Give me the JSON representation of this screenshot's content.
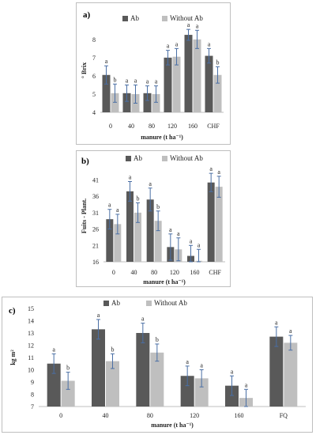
{
  "legend": {
    "ab": "Ab",
    "without_ab": "Without Ab"
  },
  "colors": {
    "ab": "#595959",
    "without_ab": "#bfbfbf",
    "error_bar": "#4a6fa5"
  },
  "chart_data": [
    {
      "panel_label": "a)",
      "type": "bar",
      "categories": [
        "0",
        "40",
        "80",
        "120",
        "160",
        "CHF"
      ],
      "ylabel": "° Brix",
      "xlabel": "manure (t ha⁻¹)",
      "ylim": [
        4,
        8.6
      ],
      "yticks": [
        4,
        5,
        6,
        7,
        8
      ],
      "series": [
        {
          "name": "Ab",
          "values": [
            6.05,
            5.05,
            5.05,
            7.0,
            8.25,
            7.1
          ],
          "errors": [
            0.5,
            0.45,
            0.4,
            0.4,
            0.3,
            0.4
          ],
          "letters": [
            "a",
            "a",
            "a",
            "a",
            "a",
            "a"
          ]
        },
        {
          "name": "Without Ab",
          "values": [
            5.05,
            5.0,
            5.0,
            7.05,
            8.0,
            6.05
          ],
          "errors": [
            0.5,
            0.5,
            0.45,
            0.45,
            0.5,
            0.45
          ],
          "letters": [
            "b",
            "a",
            "a",
            "a",
            "a",
            "b"
          ]
        }
      ]
    },
    {
      "panel_label": "b)",
      "type": "bar",
      "categories": [
        "0",
        "40",
        "80",
        "120",
        "160",
        "CHF"
      ],
      "ylabel": "Fuits - Plant.",
      "xlabel": "manure (t ha⁻¹)",
      "ylim": [
        16,
        44
      ],
      "yticks": [
        16,
        21,
        26,
        31,
        36,
        41
      ],
      "series": [
        {
          "name": "Ab",
          "values": [
            29,
            37.5,
            35,
            20.5,
            17.8,
            40.2
          ],
          "errors": [
            3.0,
            3.0,
            3.5,
            4.0,
            3.2,
            2.8
          ],
          "letters": [
            "a",
            "a",
            "a",
            "a",
            "a",
            "a"
          ]
        },
        {
          "name": "Without Ab",
          "values": [
            27.5,
            31,
            28.5,
            19.8,
            16.3,
            38.9
          ],
          "errors": [
            3.0,
            3.0,
            3.0,
            3.5,
            3.5,
            3.2
          ],
          "letters": [
            "a",
            "b",
            "b",
            "a",
            "a",
            "a"
          ]
        }
      ]
    },
    {
      "panel_label": "c)",
      "type": "bar",
      "categories": [
        "0",
        "40",
        "80",
        "120",
        "160",
        "FQ"
      ],
      "ylabel": "kg m²",
      "xlabel": "manure (t ha⁻¹)",
      "ylim": [
        7,
        15
      ],
      "yticks": [
        7,
        8,
        9,
        10,
        11,
        12,
        13,
        14,
        15
      ],
      "series": [
        {
          "name": "Ab",
          "values": [
            10.5,
            13.3,
            13.0,
            9.5,
            8.7,
            12.7
          ],
          "errors": [
            0.8,
            0.8,
            0.8,
            0.8,
            0.8,
            0.8
          ],
          "letters": [
            "a",
            "a",
            "a",
            "a",
            "a",
            "a"
          ]
        },
        {
          "name": "Without Ab",
          "values": [
            9.1,
            10.7,
            11.4,
            9.3,
            7.7,
            12.2
          ],
          "errors": [
            0.7,
            0.6,
            0.7,
            0.7,
            0.7,
            0.6
          ],
          "letters": [
            "b",
            "b",
            "b",
            "a",
            "a",
            "a"
          ]
        }
      ]
    }
  ]
}
